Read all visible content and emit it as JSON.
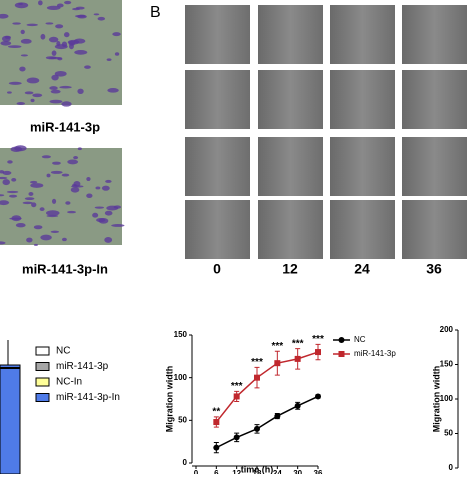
{
  "panel_label": "B",
  "image_labels": [
    "miR-141-3p",
    "miR-141-3p-In"
  ],
  "time_labels": [
    "0",
    "12",
    "24",
    "36"
  ],
  "left_legend": {
    "items": [
      {
        "name": "NC",
        "color": "#ffffff"
      },
      {
        "name": "miR-141-3p",
        "color": "#a6a6a6"
      },
      {
        "name": "NC-In",
        "color": "#ffff99"
      },
      {
        "name": "miR-141-3p-In",
        "color": "#4f7be8"
      }
    ]
  },
  "chart_data": {
    "type": "line",
    "x_label": "time (h)",
    "y_label": "Migration width",
    "x": [
      6,
      12,
      18,
      24,
      30,
      36
    ],
    "series": [
      {
        "name": "NC",
        "color": "#000000",
        "marker": "circle",
        "values": [
          18,
          30,
          40,
          55,
          67,
          78
        ],
        "errors": [
          6,
          5,
          5,
          3,
          4,
          2
        ]
      },
      {
        "name": "miR-141-3p",
        "color": "#c0272d",
        "marker": "square",
        "values": [
          48,
          78,
          100,
          117,
          122,
          130
        ],
        "errors": [
          6,
          6,
          12,
          14,
          12,
          9
        ]
      }
    ],
    "annotations": [
      "**",
      "***",
      "***",
      "***",
      "***",
      "***"
    ],
    "xlim": [
      0,
      36
    ],
    "xticks": [
      0,
      6,
      12,
      18,
      24,
      30,
      36
    ],
    "ylim": [
      0,
      150
    ],
    "yticks": [
      0,
      50,
      100,
      150
    ]
  },
  "right_panel": {
    "y_label": "Migration width",
    "ylim": [
      0,
      200
    ],
    "yticks": [
      0,
      50,
      100,
      150,
      200
    ]
  }
}
